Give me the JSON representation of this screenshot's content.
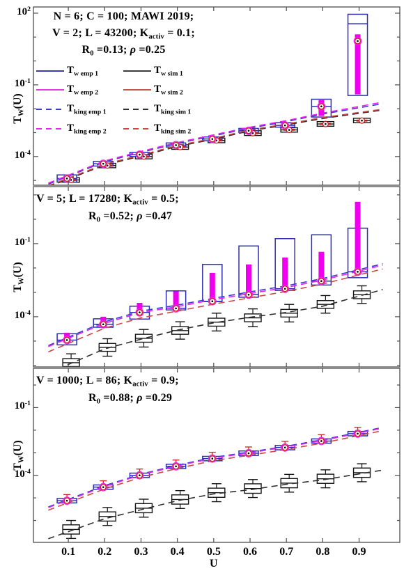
{
  "figure": {
    "xlabel": "U",
    "ylabel": "T_{W}(U)",
    "x_ticks": [
      0.1,
      0.2,
      0.3,
      0.4,
      0.5,
      0.6,
      0.7,
      0.8,
      0.9
    ],
    "x_tick_labels": [
      "0.1",
      "0.2",
      "0.3",
      "0.4",
      "0.5",
      "0.6",
      "0.7",
      "0.8",
      "0.9"
    ]
  },
  "colors": {
    "axis": "#4d4d4d",
    "emp_box": "#2d2db4",
    "emp_inner": "#ee00ee",
    "sim_box": "#141414",
    "sim_inner": "#b22222",
    "marker_red": "#cc2222",
    "marker_magenta": "#ee22ee",
    "king_emp_1": "#3b3bd0",
    "king_emp_2": "#ee22ee",
    "king_sim_1": "#2f2f2f",
    "king_sim_2": "#d04545"
  },
  "legend": {
    "items": [
      {
        "label": "T_{w emp 1}",
        "color": "#3a3aad",
        "dash": false,
        "col": 0,
        "row": 0
      },
      {
        "label": "T_{w sim 1}",
        "color": "#3b3b3b",
        "dash": false,
        "col": 1,
        "row": 0
      },
      {
        "label": "T_{w emp 2}",
        "color": "#e23ae2",
        "dash": false,
        "col": 0,
        "row": 1
      },
      {
        "label": "T_{w sim 2}",
        "color": "#c75450",
        "dash": false,
        "col": 1,
        "row": 1
      },
      {
        "label": "T_{king emp 1}",
        "color": "#3b3bd0",
        "dash": true,
        "col": 0,
        "row": 2
      },
      {
        "label": "T_{king sim 1}",
        "color": "#2f2f2f",
        "dash": true,
        "col": 1,
        "row": 2
      },
      {
        "label": "T_{king emp 2}",
        "color": "#ee22ee",
        "dash": true,
        "col": 0,
        "row": 3
      },
      {
        "label": "T_{king sim 2}",
        "color": "#d04545",
        "dash": true,
        "col": 1,
        "row": 3
      }
    ]
  },
  "chart_data": {
    "type": "box+line",
    "xlabel": "U",
    "ylabel": "T_W(U)",
    "x": [
      0.1,
      0.2,
      0.3,
      0.4,
      0.5,
      0.6,
      0.7,
      0.8,
      0.9
    ],
    "panels": [
      {
        "annotations": [
          "N = 6; C = 100; MAWI 2019;",
          "V = 2; L = 43200; K_{activ} = 0.1;",
          "R_{0} =0.13; ρ =0.25"
        ],
        "ylim_exp": [
          -5.2,
          2.26
        ],
        "ytick_exps": [
          2,
          -1,
          -4
        ],
        "yminor_exps": [
          1,
          0,
          -2,
          -3,
          -5
        ],
        "emp": {
          "median": [
            1.2e-05,
            5e-05,
            0.00012,
            0.0003,
            0.00054,
            0.0012,
            0.002,
            0.0125,
            6.8
          ],
          "box_median": [
            1.2e-05,
            5e-05,
            0.00012,
            0.0003,
            0.00054,
            0.0012,
            0.002,
            0.0125,
            36
          ],
          "q1": [
            8.5e-06,
            4e-05,
            0.0001,
            0.00025,
            0.00046,
            0.001,
            0.0017,
            0.0045,
            0.036
          ],
          "q3": [
            1.7e-05,
            6.3e-05,
            0.00015,
            0.00037,
            0.00066,
            0.0015,
            0.0026,
            0.025,
            90
          ],
          "inner_lo": [
            9.5e-06,
            4.4e-05,
            0.00011,
            0.00027,
            0.0005,
            0.0011,
            0.00185,
            0.005,
            0.04
          ],
          "inner_hi": [
            1.5e-05,
            5.8e-05,
            0.00014,
            0.00034,
            0.00062,
            0.0014,
            0.0024,
            0.023,
            13
          ],
          "markers": true
        },
        "sim": {
          "median": [
            1.05e-05,
            4.2e-05,
            0.0001,
            0.00025,
            0.00047,
            0.00095,
            0.0013,
            0.0023,
            0.0032
          ],
          "q1": [
            8.4e-06,
            3.4e-05,
            8e-05,
            0.0002,
            0.00038,
            0.00076,
            0.00105,
            0.00185,
            0.0026
          ],
          "q3": [
            1.3e-05,
            5.2e-05,
            0.000125,
            0.00031,
            0.00059,
            0.0012,
            0.0016,
            0.0029,
            0.004
          ],
          "inner_lo": [
            9.5e-06,
            3.8e-05,
            9e-05,
            0.00023,
            0.00043,
            0.00086,
            0.0012,
            0.0021,
            0.0029
          ],
          "inner_hi": [
            1.15e-05,
            4.6e-05,
            0.00011,
            0.000275,
            0.00052,
            0.00105,
            0.00145,
            0.00255,
            0.0035
          ],
          "markers": true
        },
        "lines": {
          "king_emp_1": [
            1.5e-05,
            6e-05,
            0.00015,
            0.00035,
            0.00074,
            0.00155,
            0.0029,
            0.006,
            0.011
          ],
          "king_emp_2": [
            1.65e-05,
            6.6e-05,
            0.000165,
            0.000385,
            0.00081,
            0.0017,
            0.0032,
            0.0066,
            0.0125
          ],
          "king_sim_1": [
            1.15e-05,
            4.4e-05,
            0.000105,
            0.000265,
            0.00053,
            0.0012,
            0.0021,
            0.0039,
            0.0064
          ],
          "king_sim_2": [
            1.25e-05,
            4.8e-05,
            0.000115,
            0.00029,
            0.00058,
            0.0013,
            0.0023,
            0.0043,
            0.007
          ]
        }
      },
      {
        "annotations": [
          "V = 5; L = 17280; K_{activ} = 0.5;",
          "R_{0} =0.52; ρ =0.47"
        ],
        "ylim_exp": [
          -6.06,
          1.34
        ],
        "ytick_exps": [
          -1,
          -4
        ],
        "yminor_exps": [
          1,
          0,
          -2,
          -3,
          -5,
          -6
        ],
        "emp": {
          "median": [
            1.1e-05,
            4.9e-05,
            0.00015,
            0.00022,
            0.00043,
            0.0008,
            0.0014,
            0.0029,
            0.007
          ],
          "box_median": [
            1.1e-05,
            4.9e-05,
            0.00015,
            0.00022,
            0.00043,
            0.0008,
            0.0014,
            0.0029,
            0.007
          ],
          "q1": [
            7e-06,
            3.7e-05,
            8e-05,
            0.00019,
            0.00042,
            0.00063,
            0.0012,
            0.002,
            0.004
          ],
          "q3": [
            2e-05,
            8.2e-05,
            0.00027,
            0.00115,
            0.014,
            0.08,
            0.16,
            0.23,
            0.43
          ],
          "inner_lo": [
            9e-06,
            4.4e-05,
            0.00012,
            0.0002,
            0.00043,
            0.0008,
            0.0014,
            0.0029,
            0.007
          ],
          "inner_hi": [
            2.2e-05,
            0.0001,
            0.00037,
            0.0011,
            0.0063,
            0.014,
            0.027,
            0.046,
            5.2
          ],
          "markers": true
        },
        "sim": {
          "median": [
            1.3e-06,
            5.5e-06,
            1.3e-05,
            2.7e-05,
            6e-05,
            9e-05,
            0.00014,
            0.00032,
            0.0008
          ],
          "q1": [
            9e-07,
            3.8e-06,
            9e-06,
            1.9e-05,
            4.1e-05,
            6.2e-05,
            9.7e-05,
            0.00022,
            0.00055
          ],
          "q3": [
            1.9e-06,
            8e-06,
            1.9e-05,
            3.9e-05,
            8.7e-05,
            0.00013,
            0.0002,
            0.00046,
            0.00115
          ],
          "whisk_lo": [
            5.7e-07,
            2.4e-06,
            5.7e-06,
            1.2e-05,
            2.6e-05,
            3.9e-05,
            6.1e-05,
            0.00014,
            0.00035
          ],
          "whisk_hi": [
            3e-06,
            1.25e-05,
            3e-05,
            6.2e-05,
            0.00014,
            0.00021,
            0.00032,
            0.00074,
            0.00185
          ],
          "markers": false
        },
        "lines": {
          "king_emp_1": [
            1.45e-05,
            6.2e-05,
            0.00017,
            0.0003,
            0.00057,
            0.00105,
            0.00185,
            0.0037,
            0.0086
          ],
          "king_emp_2": [
            1.3e-05,
            5.4e-05,
            0.00015,
            0.00026,
            0.0005,
            0.0009,
            0.0016,
            0.0032,
            0.0075
          ],
          "king_sim_1": [
            1.1e-06,
            4.8e-06,
            1.2e-05,
            2.8e-05,
            5.6e-05,
            9.5e-05,
            0.00015,
            0.00027,
            0.0007
          ],
          "king_sim_2": [
            8e-06,
            3.4e-05,
            9e-05,
            0.00017,
            0.00033,
            0.0006,
            0.0011,
            0.0022,
            0.0052
          ]
        }
      },
      {
        "annotations": [
          "V = 1000; L = 86; K_{activ} = 0.9;",
          "R_{0} =0.88; ρ =0.29"
        ],
        "ylim_exp": [
          -6.97,
          0.74
        ],
        "ytick_exps": [
          -1,
          -4
        ],
        "yminor_exps": [
          0,
          -2,
          -3,
          -5,
          -6
        ],
        "emp": {
          "median": [
            7.5e-06,
            3e-05,
            0.0001,
            0.00025,
            0.00055,
            0.00095,
            0.0017,
            0.0033,
            0.007
          ],
          "box_median": [
            7.5e-06,
            3e-05,
            0.0001,
            0.00025,
            0.00055,
            0.00095,
            0.0017,
            0.0033,
            0.007
          ],
          "q1": [
            6e-06,
            2.4e-05,
            8e-05,
            0.0002,
            0.00044,
            0.00076,
            0.00135,
            0.00265,
            0.0056
          ],
          "q3": [
            9.4e-06,
            3.75e-05,
            0.000125,
            0.00031,
            0.00069,
            0.0012,
            0.0021,
            0.0041,
            0.00875
          ],
          "inner_lo": [
            6.9e-06,
            2.8e-05,
            9.3e-05,
            0.00023,
            0.00051,
            0.00088,
            0.0016,
            0.00305,
            0.0065
          ],
          "inner_hi": [
            8.1e-06,
            3.2e-05,
            0.000108,
            0.00027,
            0.00059,
            0.00103,
            0.00184,
            0.00356,
            0.00756
          ],
          "cap_hi": [
            1.4e-05,
            5.7e-05,
            0.00019,
            0.000475,
            0.00105,
            0.0018,
            0.0032,
            0.0063,
            0.0133
          ],
          "markers": true
        },
        "sim": {
          "median": [
            4e-07,
            1.5e-06,
            3.5e-06,
            8.5e-06,
            1.7e-05,
            2.6e-05,
            4.5e-05,
            7e-05,
            0.00013
          ],
          "q1": [
            2.5e-07,
            9.4e-07,
            2.2e-06,
            5.3e-06,
            1.06e-05,
            1.6e-05,
            2.8e-05,
            4.4e-05,
            8.1e-05
          ],
          "q3": [
            6.4e-07,
            2.4e-06,
            5.6e-06,
            1.36e-05,
            2.7e-05,
            4.2e-05,
            7.2e-05,
            0.000112,
            0.00021
          ],
          "whisk_lo": [
            1.6e-07,
            6e-07,
            1.4e-06,
            3.4e-06,
            6.8e-06,
            1.04e-05,
            1.8e-05,
            2.8e-05,
            5.2e-05
          ],
          "whisk_hi": [
            1e-06,
            3.75e-06,
            8.75e-06,
            2.1e-05,
            4.25e-05,
            6.5e-05,
            0.00011,
            0.000175,
            0.000325
          ],
          "markers": false
        },
        "lines": {
          "king_emp_1": [
            8.6e-06,
            3.5e-05,
            0.000113,
            0.00028,
            0.00063,
            0.00108,
            0.00194,
            0.0038,
            0.0081
          ],
          "king_emp_2": [
            8e-06,
            3.2e-05,
            0.000105,
            0.00026,
            0.00058,
            0.001,
            0.0018,
            0.0035,
            0.0075
          ],
          "king_sim_1": [
            3.2e-07,
            1.2e-06,
            3e-06,
            7.5e-06,
            1.5e-05,
            2.3e-05,
            4e-05,
            6.3e-05,
            0.000115
          ],
          "king_sim_2": [
            6.2e-06,
            2.5e-05,
            8.2e-05,
            0.0002,
            0.00045,
            0.00078,
            0.0014,
            0.0027,
            0.0058
          ]
        }
      }
    ]
  }
}
